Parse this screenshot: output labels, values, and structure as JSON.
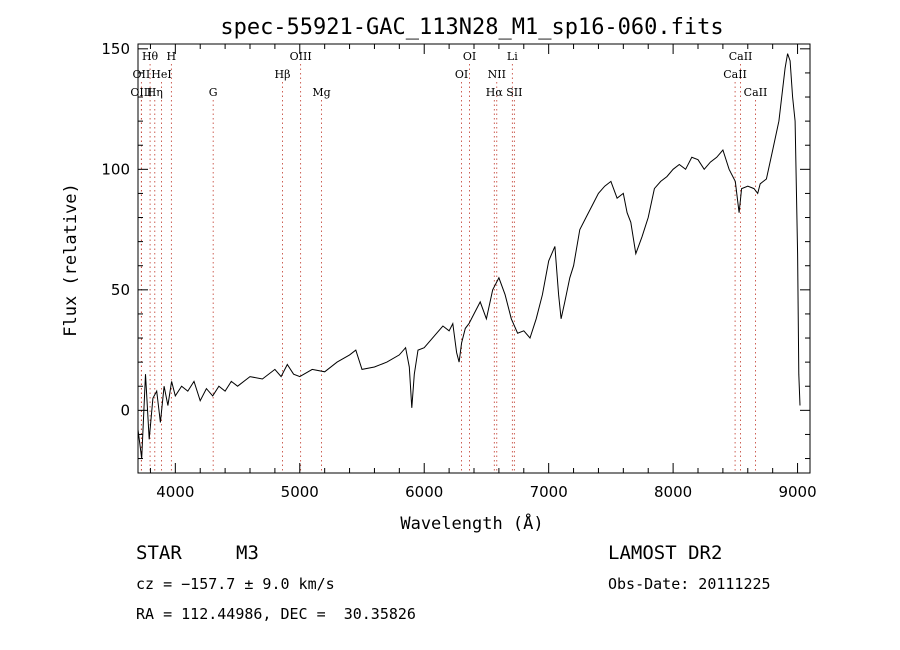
{
  "chart_data": {
    "type": "line",
    "title": "spec-55921-GAC_113N28_M1_sp16-060.fits",
    "xlabel": "Wavelength (Å)",
    "ylabel": "Flux (relative)",
    "xlim": [
      3700,
      9100
    ],
    "ylim": [
      -26,
      152
    ],
    "xticks": [
      4000,
      5000,
      6000,
      7000,
      8000,
      9000
    ],
    "yticks": [
      0,
      50,
      100,
      150
    ],
    "grid": false,
    "series": [
      {
        "x": [
          3700,
          3730,
          3760,
          3790,
          3820,
          3850,
          3880,
          3910,
          3940,
          3970,
          4000,
          4050,
          4100,
          4150,
          4200,
          4250,
          4300,
          4350,
          4400,
          4450,
          4500,
          4600,
          4700,
          4800,
          4850,
          4900,
          4950,
          5000,
          5100,
          5200,
          5300,
          5400,
          5450,
          5500,
          5600,
          5700,
          5800,
          5850,
          5880,
          5900,
          5920,
          5950,
          6000,
          6100,
          6150,
          6200,
          6230,
          6260,
          6280,
          6300,
          6330,
          6360,
          6400,
          6450,
          6500,
          6550,
          6600,
          6650,
          6700,
          6750,
          6800,
          6850,
          6900,
          6950,
          7000,
          7050,
          7080,
          7100,
          7130,
          7150,
          7170,
          7200,
          7250,
          7300,
          7350,
          7400,
          7450,
          7500,
          7550,
          7600,
          7630,
          7660,
          7700,
          7750,
          7800,
          7850,
          7900,
          7950,
          8000,
          8050,
          8100,
          8150,
          8200,
          8250,
          8300,
          8350,
          8400,
          8450,
          8500,
          8530,
          8550,
          8600,
          8650,
          8680,
          8700,
          8750,
          8800,
          8850,
          8900,
          8920,
          8940,
          8960,
          8980,
          9000,
          9010,
          9020
        ],
        "y": [
          -8,
          -20,
          15,
          -12,
          5,
          8,
          -5,
          10,
          2,
          12,
          6,
          10,
          8,
          12,
          4,
          9,
          6,
          10,
          8,
          12,
          10,
          14,
          13,
          17,
          14,
          19,
          15,
          14,
          17,
          16,
          20,
          23,
          25,
          17,
          18,
          20,
          23,
          26,
          18,
          1,
          15,
          25,
          26,
          32,
          35,
          33,
          36,
          24,
          20,
          28,
          34,
          36,
          40,
          45,
          38,
          50,
          55,
          48,
          38,
          32,
          33,
          30,
          38,
          48,
          62,
          68,
          48,
          38,
          45,
          50,
          55,
          60,
          75,
          80,
          85,
          90,
          93,
          95,
          88,
          90,
          82,
          78,
          65,
          72,
          80,
          92,
          95,
          97,
          100,
          102,
          100,
          105,
          104,
          100,
          103,
          105,
          108,
          100,
          95,
          82,
          92,
          93,
          92,
          90,
          94,
          96,
          108,
          120,
          142,
          148,
          145,
          130,
          120,
          65,
          15,
          2
        ],
        "color": "#000000"
      }
    ],
    "line_markers": [
      {
        "name": "Hθ",
        "wavelength": 3797,
        "row": 1
      },
      {
        "name": "H",
        "wavelength": 3968,
        "row": 1
      },
      {
        "name": "OII",
        "wavelength": 3727,
        "row": 2
      },
      {
        "name": "HeI",
        "wavelength": 3889,
        "row": 2
      },
      {
        "name": "OIII",
        "wavelength": 3727,
        "row": 3
      },
      {
        "name": "Hη",
        "wavelength": 3835,
        "row": 3
      },
      {
        "name": "G",
        "wavelength": 4304,
        "row": 3
      },
      {
        "name": "OIII",
        "wavelength": 5007,
        "row": 1
      },
      {
        "name": "Hβ",
        "wavelength": 4861,
        "row": 2
      },
      {
        "name": "Mg",
        "wavelength": 5175,
        "row": 3
      },
      {
        "name": "OI",
        "wavelength": 6364,
        "row": 1
      },
      {
        "name": "OI",
        "wavelength": 6300,
        "row": 2
      },
      {
        "name": "Li",
        "wavelength": 6708,
        "row": 1
      },
      {
        "name": "NII",
        "wavelength": 6583,
        "row": 2
      },
      {
        "name": "Hα",
        "wavelength": 6563,
        "row": 3
      },
      {
        "name": "SII",
        "wavelength": 6724,
        "row": 3
      },
      {
        "name": "CaII",
        "wavelength": 8542,
        "row": 1
      },
      {
        "name": "CaII",
        "wavelength": 8498,
        "row": 2
      },
      {
        "name": "CaII",
        "wavelength": 8662,
        "row": 3
      }
    ]
  },
  "info": {
    "object_type": "STAR",
    "subclass": "M3",
    "survey": "LAMOST DR2",
    "cz": "cz = −157.7 ± 9.0 km/s",
    "obs_date": "Obs-Date: 20111225",
    "coords": "RA = 112.44986, DEC =  30.35826"
  }
}
